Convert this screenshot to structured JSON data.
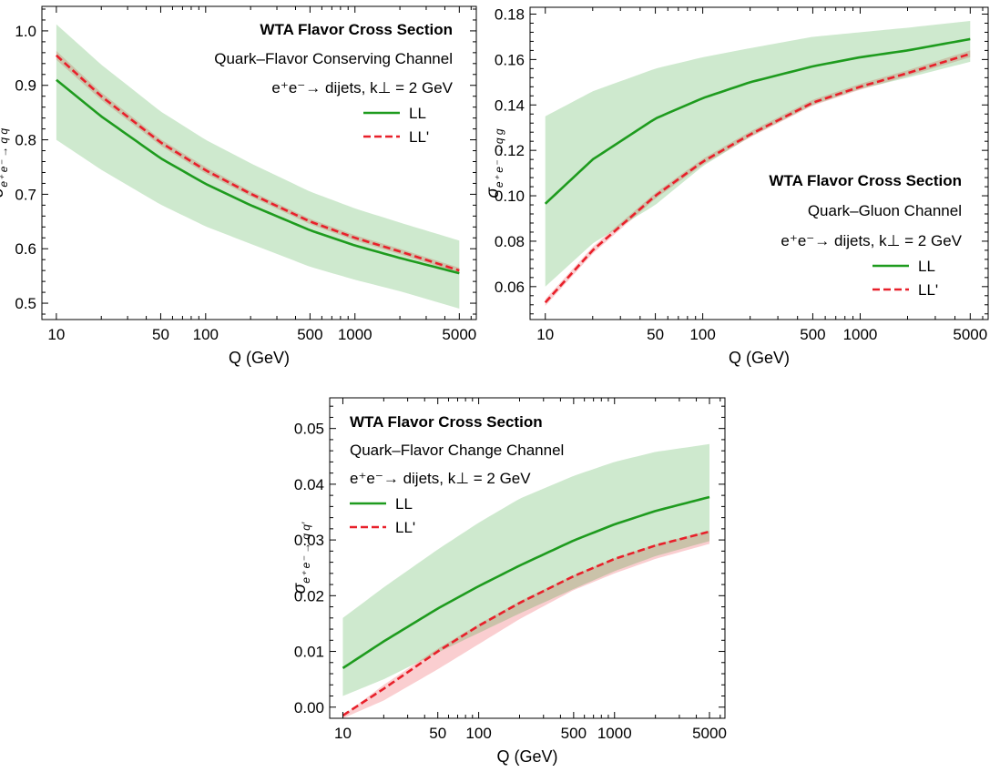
{
  "figure": {
    "title": "",
    "xlabel": "Q (GeV)"
  },
  "chart_data": [
    {
      "type": "line",
      "panel": "top-left",
      "title": "WTA Flavor Cross Section",
      "subtitle": "Quark–Flavor Conserving Channel",
      "process": "e⁺e⁻→ dijets, k⊥ = 2 GeV",
      "xlabel": "Q (GeV)",
      "ylabel_parts": [
        "σ",
        "e⁺ e⁻ → q q"
      ],
      "xscale": "log",
      "xlim": [
        8,
        6500
      ],
      "ylim": [
        0.47,
        1.045
      ],
      "x_ticks": [
        10,
        50,
        100,
        500,
        1000,
        5000
      ],
      "x_tick_labels": [
        "10",
        "50",
        "100",
        "500",
        "1000",
        "5000"
      ],
      "y_ticks": [
        0.5,
        0.6,
        0.7,
        0.8,
        0.9,
        1.0
      ],
      "y_tick_labels": [
        "0.5",
        "0.6",
        "0.7",
        "0.8",
        "0.9",
        "1.0"
      ],
      "legend_position": "top-right",
      "x": [
        10,
        20,
        50,
        100,
        200,
        500,
        1000,
        2000,
        5000
      ],
      "series": [
        {
          "name": "LL",
          "style": "solid",
          "color": "#1e9b1e",
          "values": [
            0.91,
            0.843,
            0.766,
            0.719,
            0.68,
            0.634,
            0.606,
            0.583,
            0.555
          ],
          "band_low": [
            0.8,
            0.745,
            0.681,
            0.641,
            0.609,
            0.567,
            0.543,
            0.522,
            0.49
          ],
          "band_high": [
            1.012,
            0.938,
            0.852,
            0.8,
            0.757,
            0.705,
            0.674,
            0.648,
            0.615
          ]
        },
        {
          "name": "LL'",
          "style": "dashed",
          "color": "#e8202a",
          "values": [
            0.955,
            0.88,
            0.795,
            0.744,
            0.701,
            0.65,
            0.62,
            0.595,
            0.56
          ],
          "band_low": [
            0.947,
            0.873,
            0.789,
            0.738,
            0.696,
            0.645,
            0.615,
            0.59,
            0.555
          ],
          "band_high": [
            0.963,
            0.887,
            0.801,
            0.75,
            0.706,
            0.655,
            0.625,
            0.6,
            0.565
          ]
        }
      ]
    },
    {
      "type": "line",
      "panel": "top-right",
      "title": "WTA Flavor Cross Section",
      "subtitle": "Quark–Gluon Channel",
      "process": "e⁺e⁻→ dijets, k⊥ = 2 GeV",
      "xlabel": "Q (GeV)",
      "ylabel_parts": [
        "σ",
        "e⁺ e⁻ → q g"
      ],
      "xscale": "log",
      "xlim": [
        8,
        6500
      ],
      "ylim": [
        0.0455,
        0.183
      ],
      "x_ticks": [
        10,
        50,
        100,
        500,
        1000,
        5000
      ],
      "x_tick_labels": [
        "10",
        "50",
        "100",
        "500",
        "1000",
        "5000"
      ],
      "y_ticks": [
        0.06,
        0.08,
        0.1,
        0.12,
        0.14,
        0.16,
        0.18
      ],
      "y_tick_labels": [
        "0.06",
        "0.08",
        "0.10",
        "0.12",
        "0.14",
        "0.16",
        "0.18"
      ],
      "legend_position": "bottom-right",
      "x": [
        10,
        20,
        50,
        100,
        200,
        500,
        1000,
        2000,
        5000
      ],
      "series": [
        {
          "name": "LL",
          "style": "solid",
          "color": "#1e9b1e",
          "values": [
            0.0965,
            0.116,
            0.134,
            0.143,
            0.15,
            0.157,
            0.161,
            0.164,
            0.169
          ],
          "band_low": [
            0.06,
            0.079,
            0.096,
            0.113,
            0.126,
            0.14,
            0.147,
            0.152,
            0.159
          ],
          "band_high": [
            0.135,
            0.146,
            0.156,
            0.161,
            0.165,
            0.17,
            0.172,
            0.174,
            0.177
          ]
        },
        {
          "name": "LL'",
          "style": "dashed",
          "color": "#e8202a",
          "values": [
            0.053,
            0.076,
            0.1,
            0.115,
            0.127,
            0.141,
            0.148,
            0.154,
            0.1625
          ],
          "band_low": [
            0.0515,
            0.0745,
            0.0987,
            0.1137,
            0.1257,
            0.1397,
            0.1467,
            0.1527,
            0.161
          ],
          "band_high": [
            0.0545,
            0.0775,
            0.1013,
            0.1163,
            0.1283,
            0.1423,
            0.1493,
            0.1553,
            0.164
          ]
        }
      ]
    },
    {
      "type": "line",
      "panel": "bottom-center",
      "title": "WTA Flavor Cross Section",
      "subtitle": "Quark–Flavor Change Channel",
      "process": "e⁺e⁻→ dijets, k⊥ = 2 GeV",
      "xlabel": "Q (GeV)",
      "ylabel_parts": [
        "σ",
        "e⁺ e⁻ → q q′"
      ],
      "xscale": "log",
      "xlim": [
        8,
        6500
      ],
      "ylim": [
        -0.002,
        0.0555
      ],
      "x_ticks": [
        10,
        50,
        100,
        500,
        1000,
        5000
      ],
      "x_tick_labels": [
        "10",
        "50",
        "100",
        "500",
        "1000",
        "5000"
      ],
      "y_ticks": [
        0.0,
        0.01,
        0.02,
        0.03,
        0.04,
        0.05
      ],
      "y_tick_labels": [
        "0.00",
        "0.01",
        "0.02",
        "0.03",
        "0.04",
        "0.05"
      ],
      "legend_position": "top-left",
      "x": [
        10,
        20,
        50,
        100,
        200,
        500,
        1000,
        2000,
        5000
      ],
      "series": [
        {
          "name": "LL",
          "style": "solid",
          "color": "#1e9b1e",
          "values": [
            0.007,
            0.0118,
            0.0177,
            0.0217,
            0.0254,
            0.0299,
            0.0328,
            0.0352,
            0.0377
          ],
          "band_low": [
            0.002,
            0.005,
            0.0098,
            0.0133,
            0.0168,
            0.0212,
            0.0244,
            0.0271,
            0.0298
          ],
          "band_high": [
            0.016,
            0.0215,
            0.0283,
            0.0331,
            0.0374,
            0.0415,
            0.044,
            0.0458,
            0.0472
          ]
        },
        {
          "name": "LL'",
          "style": "dashed",
          "color": "#e8202a",
          "values": [
            -0.0015,
            0.0033,
            0.01,
            0.0146,
            0.0187,
            0.0235,
            0.0266,
            0.029,
            0.0315
          ],
          "band_low": [
            -0.002,
            0.0012,
            0.0068,
            0.0113,
            0.0158,
            0.021,
            0.024,
            0.0266,
            0.0293
          ],
          "band_high": [
            -0.0015,
            0.004,
            0.0105,
            0.0149,
            0.019,
            0.0237,
            0.0267,
            0.0292,
            0.0317
          ]
        }
      ]
    }
  ]
}
